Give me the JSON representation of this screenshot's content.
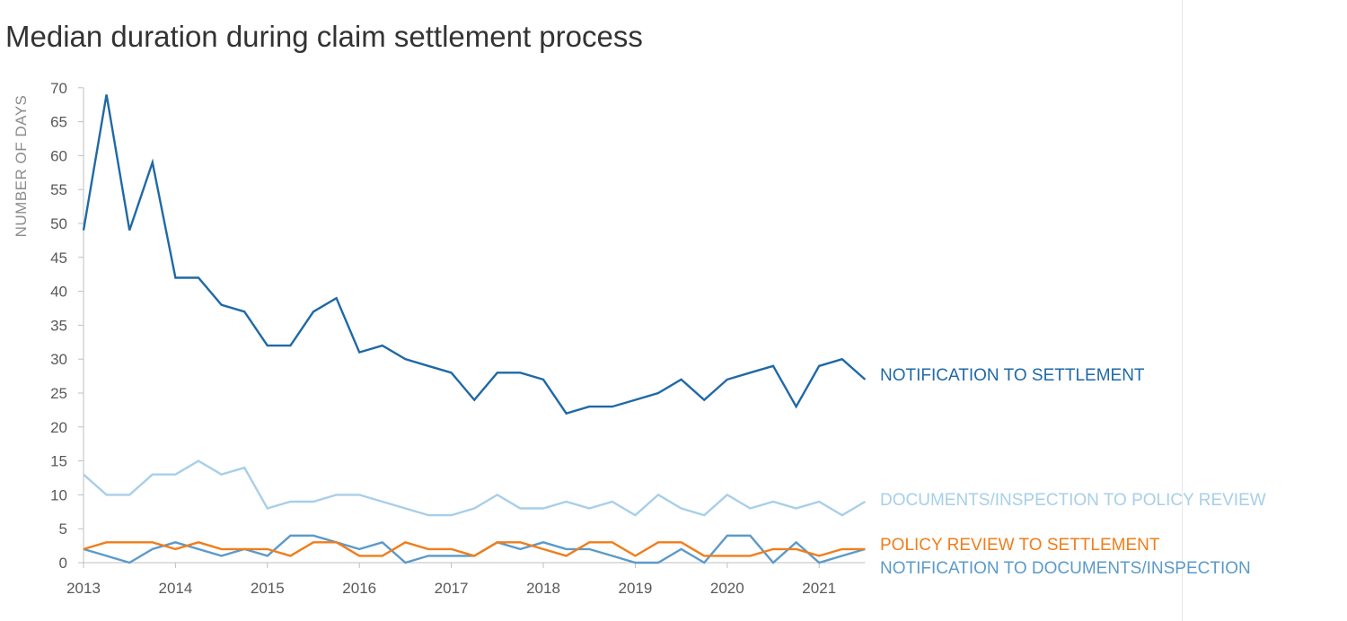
{
  "chart_data": {
    "type": "line",
    "title": "Median duration during claim settlement process",
    "ylabel": "NUMBER OF DAYS",
    "xlabel": "",
    "ylim": [
      0,
      70
    ],
    "yticks": [
      0,
      5,
      10,
      15,
      20,
      25,
      30,
      35,
      40,
      45,
      50,
      55,
      60,
      65,
      70
    ],
    "xticks": [
      "2013",
      "2014",
      "2015",
      "2016",
      "2017",
      "2018",
      "2019",
      "2020",
      "2021"
    ],
    "x_period": "quarterly",
    "x_start": "2013 Q1",
    "x_end": "2021 Q3",
    "grid": false,
    "legend": "direct labels at right end of lines",
    "series": [
      {
        "name": "NOTIFICATION TO SETTLEMENT",
        "color": "#1f69a6",
        "values": [
          49,
          69,
          49,
          59,
          42,
          42,
          38,
          37,
          32,
          32,
          37,
          39,
          31,
          32,
          30,
          29,
          28,
          24,
          28,
          28,
          27,
          22,
          23,
          23,
          24,
          25,
          27,
          24,
          27,
          28,
          29,
          23,
          29,
          30,
          27
        ]
      },
      {
        "name": "DOCUMENTS/INSPECTION TO POLICY REVIEW",
        "color": "#a7cfe8",
        "values": [
          13,
          10,
          10,
          13,
          13,
          15,
          13,
          14,
          8,
          9,
          9,
          10,
          10,
          9,
          8,
          7,
          7,
          8,
          10,
          8,
          8,
          9,
          8,
          9,
          7,
          10,
          8,
          7,
          10,
          8,
          9,
          8,
          9,
          7,
          9
        ]
      },
      {
        "name": "POLICY REVIEW TO SETTLEMENT",
        "color": "#f07d1a",
        "values": [
          2,
          3,
          3,
          3,
          2,
          3,
          2,
          2,
          2,
          1,
          3,
          3,
          1,
          1,
          3,
          2,
          2,
          1,
          3,
          3,
          2,
          1,
          3,
          3,
          1,
          3,
          3,
          1,
          1,
          1,
          2,
          2,
          1,
          2,
          2
        ]
      },
      {
        "name": "NOTIFICATION TO DOCUMENTS/INSPECTION",
        "color": "#5b9ac9",
        "values": [
          2,
          1,
          0,
          2,
          3,
          2,
          1,
          2,
          1,
          4,
          4,
          3,
          2,
          3,
          0,
          1,
          1,
          1,
          3,
          2,
          3,
          2,
          2,
          1,
          0,
          0,
          2,
          0,
          4,
          4,
          0,
          3,
          0,
          1,
          2
        ]
      }
    ]
  }
}
